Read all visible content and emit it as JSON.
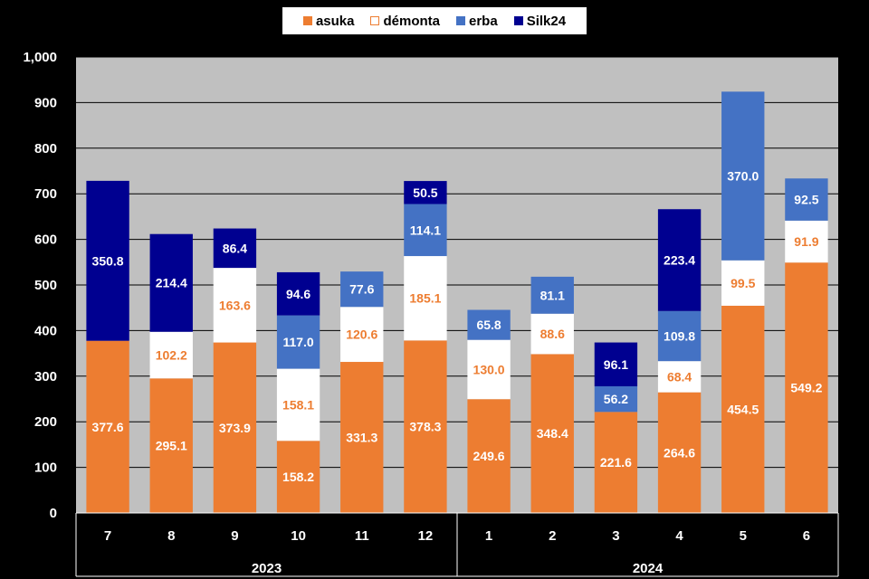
{
  "chart_data": {
    "type": "bar",
    "stacked": true,
    "categories": [
      "7",
      "8",
      "9",
      "10",
      "11",
      "12",
      "1",
      "2",
      "3",
      "4",
      "5",
      "6"
    ],
    "groups": [
      {
        "label": "2023",
        "categories": [
          "7",
          "8",
          "9",
          "10",
          "11",
          "12"
        ]
      },
      {
        "label": "2024",
        "categories": [
          "1",
          "2",
          "3",
          "4",
          "5",
          "6"
        ]
      }
    ],
    "series": [
      {
        "name": "asuka",
        "color": "#ED7D31",
        "label_color": "#FFFFFF",
        "values": [
          377.6,
          295.1,
          373.9,
          158.2,
          331.3,
          378.3,
          249.6,
          348.4,
          221.6,
          264.6,
          454.5,
          549.2
        ]
      },
      {
        "name": "démonta",
        "color": "#FFFFFF",
        "label_color": "#ED7D31",
        "values": [
          null,
          102.2,
          163.6,
          158.1,
          120.6,
          185.1,
          130.0,
          88.6,
          null,
          68.4,
          99.5,
          91.9
        ]
      },
      {
        "name": "erba",
        "color": "#4472C4",
        "label_color": "#FFFFFF",
        "values": [
          null,
          null,
          null,
          117.0,
          77.6,
          114.1,
          65.8,
          81.1,
          56.2,
          109.8,
          370.0,
          92.5
        ]
      },
      {
        "name": "Silk24",
        "color": "#000090",
        "label_color": "#FFFFFF",
        "values": [
          350.8,
          214.4,
          86.4,
          94.6,
          null,
          50.5,
          null,
          null,
          96.1,
          223.4,
          null,
          null
        ]
      }
    ],
    "ylim": [
      0,
      1000
    ],
    "yticks": [
      "0",
      "100",
      "200",
      "300",
      "400",
      "500",
      "600",
      "700",
      "800",
      "900",
      "1,000"
    ],
    "grid": true,
    "plot_background": "#C0C0C0",
    "legend": "top-center"
  }
}
